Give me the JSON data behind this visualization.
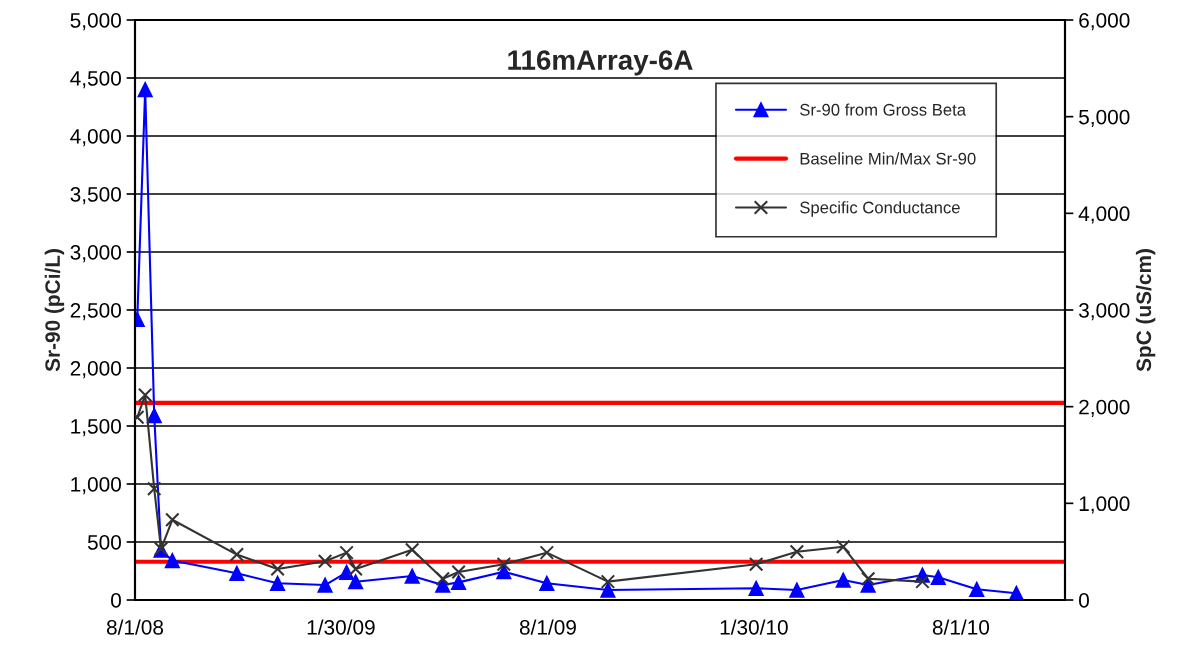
{
  "chart_data": {
    "type": "line",
    "title": "116mArray-6A",
    "ylabel": "Sr-90 (pCi/L)",
    "y2label": "SpC (uS/cm)",
    "x": [
      "2008-08-03",
      "2008-08-10",
      "2008-08-18",
      "2008-08-24",
      "2008-09-03",
      "2008-10-30",
      "2008-12-05",
      "2009-01-16",
      "2009-02-04",
      "2009-02-12",
      "2009-04-03",
      "2009-04-30",
      "2009-05-14",
      "2009-06-23",
      "2009-07-31",
      "2009-09-23",
      "2010-02-01",
      "2010-03-09",
      "2010-04-19",
      "2010-05-11",
      "2010-06-28",
      "2010-07-12",
      "2010-08-15",
      "2010-09-19"
    ],
    "series": [
      {
        "name": "Sr-90 from Gross Beta",
        "color": "#0000ff",
        "marker": "triangle",
        "values": [
          2420,
          4400,
          1590,
          430,
          340,
          230,
          144,
          129,
          239,
          158,
          207,
          129,
          152,
          244,
          144,
          86,
          101,
          86,
          172,
          129,
          215,
          196,
          92,
          58
        ]
      },
      {
        "name": "Specific Conductance",
        "color": "#333333",
        "marker": "cross",
        "axis": "y2",
        "values": [
          1890,
          2120,
          1150,
          530,
          830,
          470,
          320,
          400,
          490,
          320,
          520,
          220,
          290,
          370,
          490,
          190,
          370,
          500,
          550,
          220,
          190,
          null,
          null,
          null
        ]
      }
    ],
    "ref_lines": [
      {
        "axis": "y",
        "value": 1700,
        "label": "Baseline Min/Max Sr-90",
        "color": "#ff0000"
      },
      {
        "axis": "y",
        "value": 330,
        "color": "#ff0000"
      }
    ],
    "xlim": [
      "2008-08-01",
      "2010-11-01"
    ],
    "xticks": [
      {
        "value": "2008-08-01",
        "label": "8/1/08"
      },
      {
        "value": "2009-01-30",
        "label": "1/30/09"
      },
      {
        "value": "2009-08-01",
        "label": "8/1/09"
      },
      {
        "value": "2010-01-30",
        "label": "1/30/10"
      },
      {
        "value": "2010-08-01",
        "label": "8/1/10"
      }
    ],
    "ylim": [
      0,
      5000
    ],
    "yticks": [
      0,
      500,
      {
        "value": 1000,
        "label": "1,000"
      },
      {
        "value": 1500,
        "label": "1,500"
      },
      {
        "value": 2000,
        "label": "2,000"
      },
      {
        "value": 2500,
        "label": "2,500"
      },
      {
        "value": 3000,
        "label": "3,000"
      },
      {
        "value": 3500,
        "label": "3,500"
      },
      {
        "value": 4000,
        "label": "4,000"
      },
      {
        "value": 4500,
        "label": "4,500"
      },
      {
        "value": 5000,
        "label": "5,000"
      }
    ],
    "y2lim": [
      0,
      6000
    ],
    "y2ticks": [
      0,
      {
        "value": 1000,
        "label": "1,000"
      },
      {
        "value": 2000,
        "label": "2,000"
      },
      {
        "value": 3000,
        "label": "3,000"
      },
      {
        "value": 4000,
        "label": "4,000"
      },
      {
        "value": 5000,
        "label": "5,000"
      },
      {
        "value": 6000,
        "label": "6,000"
      }
    ],
    "grid": "y",
    "legend": "top right"
  }
}
